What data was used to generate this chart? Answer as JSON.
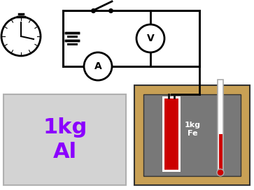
{
  "bg_color": "#ffffff",
  "cc": "#000000",
  "lw": 2.0,
  "box_text": "1kg\nAl",
  "box_text_color": "#8B00FF",
  "cork_color": "#c8a055",
  "metal_color": "#787878",
  "heater_color": "#cc0000",
  "therm_mercury": "#cc0000",
  "label_text": "1kg\nFe",
  "label_color": "#ffffff",
  "box_bg": "#d3d3d3",
  "box_edge": "#b0b0b0"
}
